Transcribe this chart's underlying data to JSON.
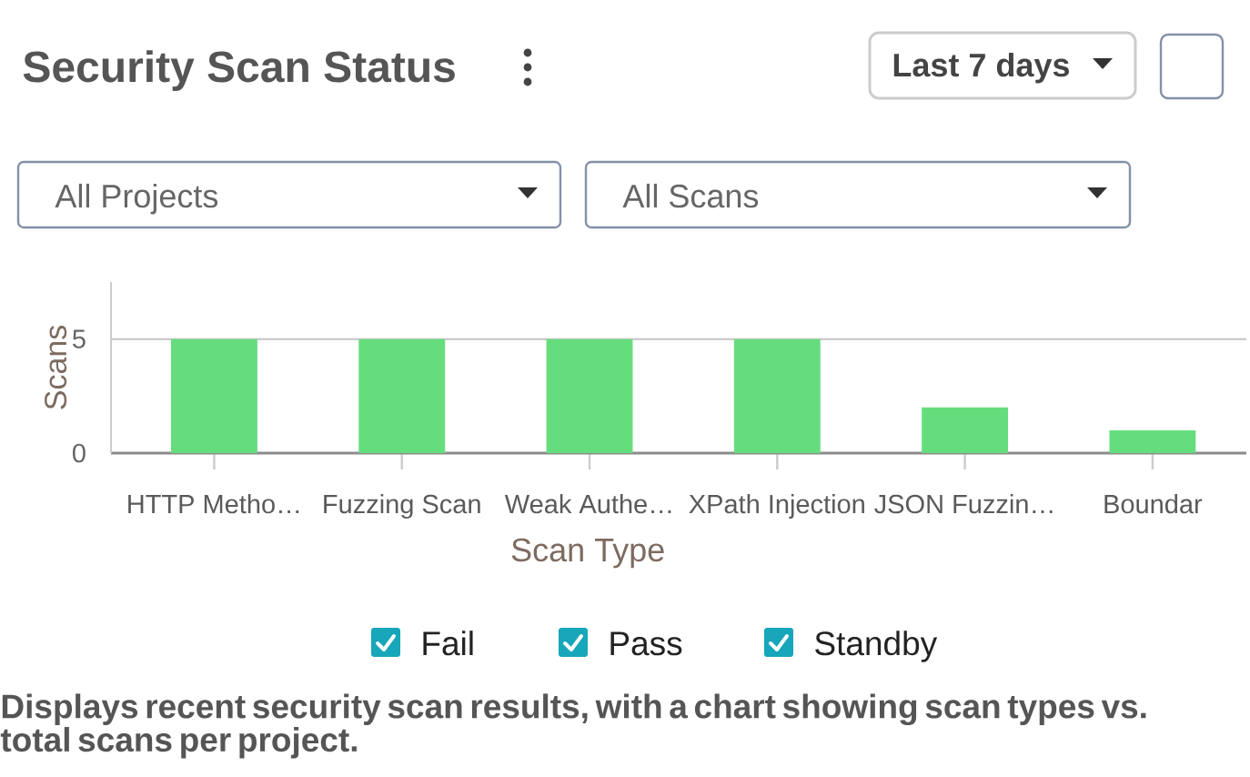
{
  "chart_data": {
    "type": "bar",
    "title": "Security Scan Status",
    "categories": [
      "HTTP Metho…",
      "Fuzzing Scan",
      "Weak Authe…",
      "XPath Injection",
      "JSON Fuzzin…",
      "Boundar"
    ],
    "values": [
      5,
      5,
      5,
      5,
      2,
      1
    ],
    "color": "#66dd7d",
    "xlabel": "Scan Type",
    "ylabel": "Scans",
    "ylim": [
      0,
      7.5
    ],
    "yticks": [
      0,
      5
    ],
    "grid": "y",
    "annotations": [
      "Last 7 days",
      "All Projects",
      "All Scans",
      "Fail",
      "Pass",
      "Standby",
      "Displays recent security scan results, with a chart showing scan types vs. total scans per project."
    ]
  }
}
